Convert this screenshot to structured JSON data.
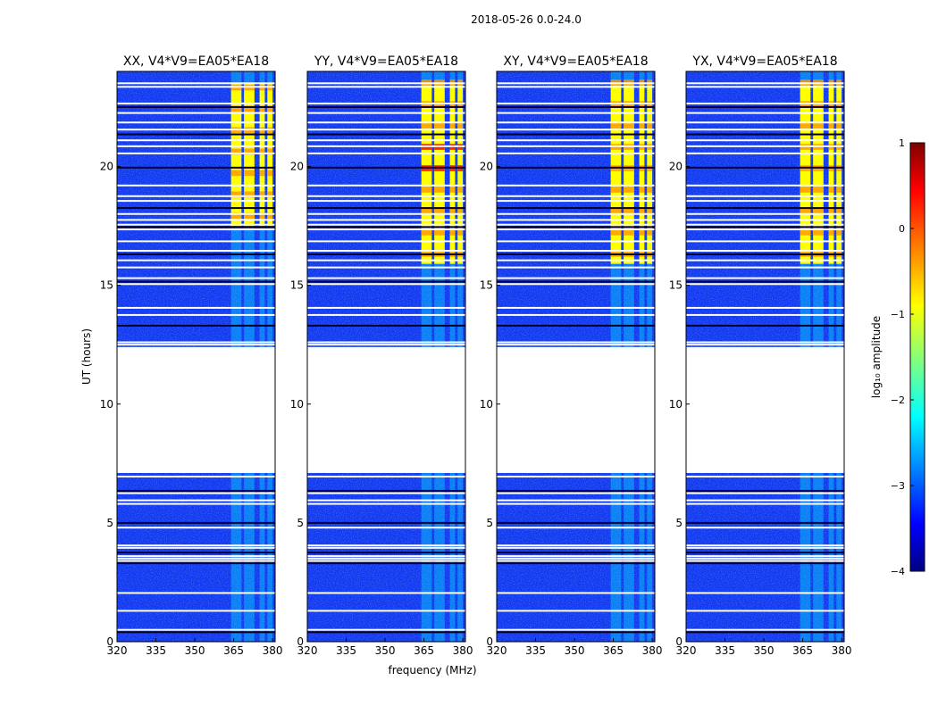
{
  "suptitle": "2018-05-26 0.0-24.0",
  "chart_data": [
    {
      "type": "heatmap",
      "title": "XX, V4*V9=EA05*EA18",
      "xlabel": "",
      "ylabel": "UT (hours)",
      "xlim": [
        320,
        381
      ],
      "ylim": [
        0,
        24
      ],
      "xticks": [
        "320",
        "335",
        "350",
        "365",
        "380"
      ],
      "yticks": [
        "0",
        "5",
        "10",
        "15",
        "20"
      ],
      "bright_bands_mhz": [
        [
          364,
          368
        ],
        [
          369,
          373
        ],
        [
          375,
          377
        ],
        [
          378,
          380
        ]
      ],
      "data_gap_hours": [
        7.1,
        12.4
      ],
      "strong_emission_hours": [
        17.5,
        23.5
      ]
    },
    {
      "type": "heatmap",
      "title": "YY, V4*V9=EA05*EA18",
      "xlabel": "frequency (MHz)",
      "ylabel": "",
      "xlim": [
        320,
        381
      ],
      "ylim": [
        0,
        24
      ],
      "xticks": [
        "320",
        "335",
        "350",
        "365",
        "380"
      ],
      "yticks": [
        "0",
        "5",
        "10",
        "15",
        "20"
      ],
      "bright_bands_mhz": [
        [
          364,
          368
        ],
        [
          369,
          373
        ],
        [
          375,
          377
        ],
        [
          378,
          380
        ]
      ],
      "data_gap_hours": [
        7.1,
        12.4
      ],
      "strong_emission_hours": [
        15.9,
        23.5
      ]
    },
    {
      "type": "heatmap",
      "title": "XY, V4*V9=EA05*EA18",
      "xlabel": "",
      "ylabel": "",
      "xlim": [
        320,
        381
      ],
      "ylim": [
        0,
        24
      ],
      "xticks": [
        "320",
        "335",
        "350",
        "365",
        "380"
      ],
      "yticks": [
        "0",
        "5",
        "10",
        "15",
        "20"
      ],
      "bright_bands_mhz": [
        [
          364,
          368
        ],
        [
          369,
          373
        ],
        [
          375,
          377
        ],
        [
          378,
          380
        ]
      ],
      "data_gap_hours": [
        7.1,
        12.4
      ],
      "strong_emission_hours": [
        15.9,
        23.5
      ]
    },
    {
      "type": "heatmap",
      "title": "YX, V4*V9=EA05*EA18",
      "xlabel": "",
      "ylabel": "",
      "xlim": [
        320,
        381
      ],
      "ylim": [
        0,
        24
      ],
      "xticks": [
        "320",
        "335",
        "350",
        "365",
        "380"
      ],
      "yticks": [
        "0",
        "5",
        "10",
        "15",
        "20"
      ],
      "bright_bands_mhz": [
        [
          364,
          368
        ],
        [
          369,
          373
        ],
        [
          375,
          377
        ],
        [
          378,
          380
        ]
      ],
      "data_gap_hours": [
        7.1,
        12.4
      ],
      "strong_emission_hours": [
        15.9,
        23.5
      ]
    }
  ],
  "colorbar": {
    "label": "log₁₀ amplitude",
    "range": [
      -4,
      1
    ],
    "ticks": [
      "1",
      "0",
      "−1",
      "−2",
      "−3",
      "−4"
    ],
    "colormap": "jet"
  },
  "colors": {
    "jet_dark_blue": "#00007f",
    "jet_blue": "#0000ff",
    "jet_cyan": "#00ffff",
    "jet_yellow": "#ffff00",
    "jet_red": "#ff0000",
    "jet_dark_red": "#7f0000"
  },
  "flagged_rows_hours": [
    0.4,
    0.5,
    1.3,
    2.05,
    3.3,
    3.4,
    3.5,
    3.6,
    3.75,
    3.95,
    4.05,
    4.8,
    5.0,
    5.8,
    5.95,
    6.25,
    6.35,
    6.95,
    12.5,
    12.6,
    13.3,
    13.75,
    14.05,
    15.05,
    15.15,
    15.3,
    15.75,
    16.05,
    16.3,
    16.45,
    16.85,
    17.35,
    17.45,
    17.55,
    17.75,
    18.0,
    18.25,
    18.55,
    18.75,
    19.2,
    19.95,
    20.55,
    20.85,
    21.1,
    21.35,
    21.55,
    21.85,
    22.25,
    22.5,
    22.65,
    23.35,
    23.5
  ]
}
